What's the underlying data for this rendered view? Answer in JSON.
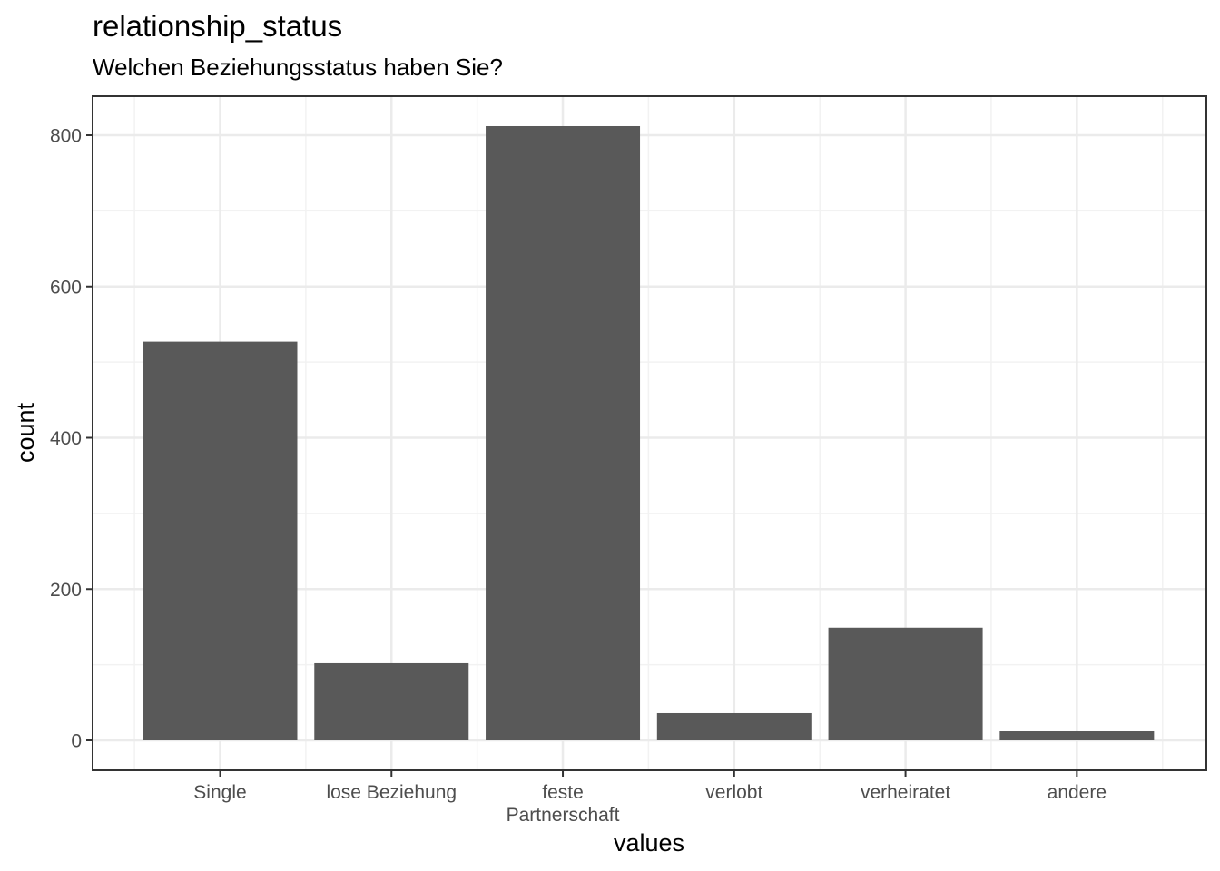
{
  "chart_data": {
    "type": "bar",
    "title": "relationship_status",
    "subtitle": "Welchen Beziehungsstatus haben Sie?",
    "xlabel": "values",
    "ylabel": "count",
    "categories": [
      [
        "Single"
      ],
      [
        "lose Beziehung"
      ],
      [
        "feste",
        "Partnerschaft"
      ],
      [
        "verlobt"
      ],
      [
        "verheiratet"
      ],
      [
        "andere"
      ]
    ],
    "values": [
      527,
      102,
      812,
      36,
      149,
      12
    ],
    "ylim": [
      -40,
      852
    ],
    "yticks": [
      0,
      200,
      400,
      600,
      800
    ],
    "grid": true,
    "colors": {
      "bar": "#595959",
      "grid_major": "#ebebeb",
      "grid_minor": "#f2f2f2",
      "panel_border": "#333333",
      "tick": "#333333"
    }
  }
}
